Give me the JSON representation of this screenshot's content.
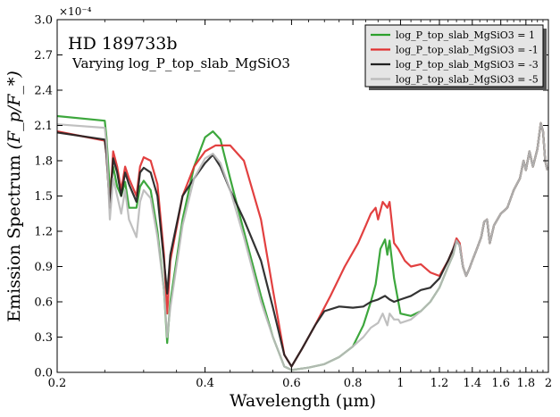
{
  "chart_data": {
    "type": "line",
    "title": "HD 189733b",
    "subtitle": "Varying log_P_top_slab_MgSiO3",
    "xlabel": "Wavelength (μm)",
    "ylabel_prefix": "Emission Spectrum ",
    "ylabel_math": "(F_p/F_*)",
    "y_multiplier": "×10⁻⁴",
    "xscale": "log",
    "xlim": [
      0.2,
      2.0
    ],
    "ylim": [
      0.0,
      3.0
    ],
    "x_ticks": [
      0.2,
      0.4,
      0.6,
      0.8,
      1.0,
      1.2,
      1.4,
      1.6,
      1.8,
      2.0
    ],
    "x_tick_labels": [
      "0.2",
      "0.4",
      "0.6",
      "0.8",
      "1",
      "1.2",
      "1.4",
      "1.6",
      "1.8",
      "2"
    ],
    "y_ticks": [
      0.0,
      0.3,
      0.6,
      0.9,
      1.2,
      1.5,
      1.8,
      2.1,
      2.4,
      2.7,
      3.0
    ],
    "y_tick_labels": [
      "0.0",
      "0.3",
      "0.6",
      "0.9",
      "1.2",
      "1.5",
      "1.8",
      "2.1",
      "2.4",
      "2.7",
      "3.0"
    ],
    "legend_position": "top-right",
    "grid": false,
    "series": [
      {
        "name": "log_P_top_slab_MgSiO3 = 1",
        "color": "#2ca02c",
        "points": [
          [
            0.2,
            2.18
          ],
          [
            0.25,
            2.14
          ],
          [
            0.252,
            2.0
          ],
          [
            0.256,
            1.55
          ],
          [
            0.26,
            1.75
          ],
          [
            0.265,
            1.58
          ],
          [
            0.27,
            1.5
          ],
          [
            0.275,
            1.62
          ],
          [
            0.28,
            1.4
          ],
          [
            0.29,
            1.4
          ],
          [
            0.295,
            1.58
          ],
          [
            0.3,
            1.63
          ],
          [
            0.31,
            1.55
          ],
          [
            0.32,
            1.2
          ],
          [
            0.33,
            0.7
          ],
          [
            0.335,
            0.25
          ],
          [
            0.34,
            0.6
          ],
          [
            0.36,
            1.3
          ],
          [
            0.38,
            1.75
          ],
          [
            0.4,
            2.0
          ],
          [
            0.415,
            2.05
          ],
          [
            0.43,
            1.98
          ],
          [
            0.45,
            1.65
          ],
          [
            0.48,
            1.2
          ],
          [
            0.52,
            0.65
          ],
          [
            0.55,
            0.3
          ],
          [
            0.58,
            0.05
          ],
          [
            0.6,
            0.02
          ],
          [
            0.65,
            0.04
          ],
          [
            0.7,
            0.07
          ],
          [
            0.75,
            0.13
          ],
          [
            0.8,
            0.22
          ],
          [
            0.84,
            0.4
          ],
          [
            0.87,
            0.6
          ],
          [
            0.89,
            0.75
          ],
          [
            0.91,
            1.05
          ],
          [
            0.93,
            1.13
          ],
          [
            0.94,
            1.0
          ],
          [
            0.95,
            1.12
          ],
          [
            0.97,
            0.8
          ],
          [
            0.99,
            0.6
          ],
          [
            1.0,
            0.5
          ],
          [
            1.05,
            0.48
          ],
          [
            1.1,
            0.52
          ],
          [
            1.15,
            0.6
          ],
          [
            1.2,
            0.72
          ],
          [
            1.25,
            0.9
          ],
          [
            1.28,
            1.0
          ],
          [
            1.3,
            1.12
          ],
          [
            1.32,
            1.08
          ],
          [
            1.34,
            0.9
          ],
          [
            1.36,
            0.82
          ],
          [
            1.38,
            0.88
          ],
          [
            1.4,
            0.95
          ],
          [
            1.43,
            1.05
          ],
          [
            1.46,
            1.15
          ],
          [
            1.48,
            1.28
          ],
          [
            1.5,
            1.3
          ],
          [
            1.52,
            1.1
          ],
          [
            1.55,
            1.25
          ],
          [
            1.6,
            1.35
          ],
          [
            1.65,
            1.4
          ],
          [
            1.7,
            1.55
          ],
          [
            1.75,
            1.65
          ],
          [
            1.78,
            1.8
          ],
          [
            1.8,
            1.72
          ],
          [
            1.83,
            1.88
          ],
          [
            1.86,
            1.75
          ],
          [
            1.9,
            1.9
          ],
          [
            1.93,
            2.12
          ],
          [
            1.95,
            2.05
          ],
          [
            1.97,
            1.8
          ],
          [
            1.99,
            1.72
          ]
        ]
      },
      {
        "name": "log_P_top_slab_MgSiO3 = -1",
        "color": "#e03030",
        "points": [
          [
            0.2,
            2.05
          ],
          [
            0.25,
            1.97
          ],
          [
            0.252,
            1.85
          ],
          [
            0.256,
            1.4
          ],
          [
            0.26,
            1.88
          ],
          [
            0.265,
            1.75
          ],
          [
            0.27,
            1.55
          ],
          [
            0.275,
            1.75
          ],
          [
            0.28,
            1.65
          ],
          [
            0.29,
            1.5
          ],
          [
            0.295,
            1.75
          ],
          [
            0.3,
            1.83
          ],
          [
            0.31,
            1.8
          ],
          [
            0.32,
            1.6
          ],
          [
            0.33,
            1.0
          ],
          [
            0.335,
            0.5
          ],
          [
            0.34,
            0.95
          ],
          [
            0.36,
            1.5
          ],
          [
            0.38,
            1.75
          ],
          [
            0.4,
            1.88
          ],
          [
            0.42,
            1.93
          ],
          [
            0.45,
            1.93
          ],
          [
            0.48,
            1.8
          ],
          [
            0.52,
            1.3
          ],
          [
            0.55,
            0.7
          ],
          [
            0.58,
            0.15
          ],
          [
            0.6,
            0.05
          ],
          [
            0.63,
            0.2
          ],
          [
            0.67,
            0.4
          ],
          [
            0.72,
            0.65
          ],
          [
            0.77,
            0.9
          ],
          [
            0.82,
            1.1
          ],
          [
            0.85,
            1.25
          ],
          [
            0.87,
            1.35
          ],
          [
            0.89,
            1.4
          ],
          [
            0.9,
            1.3
          ],
          [
            0.92,
            1.45
          ],
          [
            0.94,
            1.4
          ],
          [
            0.95,
            1.45
          ],
          [
            0.97,
            1.1
          ],
          [
            0.99,
            1.05
          ],
          [
            1.02,
            0.95
          ],
          [
            1.05,
            0.9
          ],
          [
            1.1,
            0.92
          ],
          [
            1.15,
            0.85
          ],
          [
            1.2,
            0.82
          ],
          [
            1.25,
            0.95
          ],
          [
            1.28,
            1.05
          ],
          [
            1.3,
            1.14
          ],
          [
            1.32,
            1.1
          ],
          [
            1.34,
            0.9
          ],
          [
            1.36,
            0.82
          ],
          [
            1.38,
            0.88
          ],
          [
            1.4,
            0.95
          ],
          [
            1.43,
            1.05
          ],
          [
            1.46,
            1.15
          ],
          [
            1.48,
            1.28
          ],
          [
            1.5,
            1.3
          ],
          [
            1.52,
            1.1
          ],
          [
            1.55,
            1.25
          ],
          [
            1.6,
            1.35
          ],
          [
            1.65,
            1.4
          ],
          [
            1.7,
            1.55
          ],
          [
            1.75,
            1.65
          ],
          [
            1.78,
            1.8
          ],
          [
            1.8,
            1.72
          ],
          [
            1.83,
            1.88
          ],
          [
            1.86,
            1.75
          ],
          [
            1.9,
            1.9
          ],
          [
            1.93,
            2.12
          ],
          [
            1.95,
            2.05
          ],
          [
            1.97,
            1.8
          ],
          [
            1.99,
            1.72
          ]
        ]
      },
      {
        "name": "log_P_top_slab_MgSiO3 = -3",
        "color": "#222222",
        "points": [
          [
            0.2,
            2.04
          ],
          [
            0.25,
            1.98
          ],
          [
            0.252,
            1.85
          ],
          [
            0.256,
            1.4
          ],
          [
            0.26,
            1.82
          ],
          [
            0.265,
            1.7
          ],
          [
            0.27,
            1.5
          ],
          [
            0.275,
            1.7
          ],
          [
            0.28,
            1.6
          ],
          [
            0.29,
            1.45
          ],
          [
            0.295,
            1.7
          ],
          [
            0.3,
            1.74
          ],
          [
            0.31,
            1.7
          ],
          [
            0.32,
            1.5
          ],
          [
            0.33,
            0.95
          ],
          [
            0.335,
            0.67
          ],
          [
            0.34,
            1.0
          ],
          [
            0.36,
            1.5
          ],
          [
            0.38,
            1.65
          ],
          [
            0.4,
            1.78
          ],
          [
            0.415,
            1.85
          ],
          [
            0.43,
            1.75
          ],
          [
            0.45,
            1.55
          ],
          [
            0.48,
            1.3
          ],
          [
            0.52,
            0.95
          ],
          [
            0.55,
            0.55
          ],
          [
            0.58,
            0.15
          ],
          [
            0.6,
            0.05
          ],
          [
            0.63,
            0.2
          ],
          [
            0.67,
            0.4
          ],
          [
            0.7,
            0.52
          ],
          [
            0.75,
            0.56
          ],
          [
            0.8,
            0.55
          ],
          [
            0.84,
            0.56
          ],
          [
            0.87,
            0.6
          ],
          [
            0.9,
            0.62
          ],
          [
            0.93,
            0.65
          ],
          [
            0.95,
            0.62
          ],
          [
            0.97,
            0.6
          ],
          [
            1.0,
            0.62
          ],
          [
            1.05,
            0.65
          ],
          [
            1.1,
            0.7
          ],
          [
            1.15,
            0.72
          ],
          [
            1.2,
            0.8
          ],
          [
            1.25,
            0.95
          ],
          [
            1.28,
            1.05
          ],
          [
            1.3,
            1.12
          ],
          [
            1.32,
            1.08
          ],
          [
            1.34,
            0.9
          ],
          [
            1.36,
            0.82
          ],
          [
            1.38,
            0.88
          ],
          [
            1.4,
            0.95
          ],
          [
            1.43,
            1.05
          ],
          [
            1.46,
            1.15
          ],
          [
            1.48,
            1.28
          ],
          [
            1.5,
            1.3
          ],
          [
            1.52,
            1.1
          ],
          [
            1.55,
            1.25
          ],
          [
            1.6,
            1.35
          ],
          [
            1.65,
            1.4
          ],
          [
            1.7,
            1.55
          ],
          [
            1.75,
            1.65
          ],
          [
            1.78,
            1.8
          ],
          [
            1.8,
            1.72
          ],
          [
            1.83,
            1.88
          ],
          [
            1.86,
            1.75
          ],
          [
            1.9,
            1.9
          ],
          [
            1.93,
            2.12
          ],
          [
            1.95,
            2.05
          ],
          [
            1.97,
            1.8
          ],
          [
            1.99,
            1.72
          ]
        ]
      },
      {
        "name": "log_P_top_slab_MgSiO3 = -5",
        "color": "#bbbbbb",
        "points": [
          [
            0.2,
            2.11
          ],
          [
            0.25,
            2.08
          ],
          [
            0.252,
            1.95
          ],
          [
            0.256,
            1.3
          ],
          [
            0.26,
            1.65
          ],
          [
            0.265,
            1.5
          ],
          [
            0.27,
            1.35
          ],
          [
            0.275,
            1.55
          ],
          [
            0.28,
            1.3
          ],
          [
            0.29,
            1.15
          ],
          [
            0.295,
            1.45
          ],
          [
            0.3,
            1.55
          ],
          [
            0.31,
            1.48
          ],
          [
            0.32,
            1.15
          ],
          [
            0.33,
            0.7
          ],
          [
            0.335,
            0.3
          ],
          [
            0.34,
            0.55
          ],
          [
            0.36,
            1.25
          ],
          [
            0.38,
            1.65
          ],
          [
            0.4,
            1.82
          ],
          [
            0.415,
            1.86
          ],
          [
            0.43,
            1.78
          ],
          [
            0.45,
            1.55
          ],
          [
            0.48,
            1.15
          ],
          [
            0.52,
            0.6
          ],
          [
            0.55,
            0.3
          ],
          [
            0.58,
            0.05
          ],
          [
            0.6,
            0.02
          ],
          [
            0.65,
            0.04
          ],
          [
            0.7,
            0.07
          ],
          [
            0.75,
            0.13
          ],
          [
            0.8,
            0.22
          ],
          [
            0.84,
            0.3
          ],
          [
            0.87,
            0.38
          ],
          [
            0.9,
            0.42
          ],
          [
            0.92,
            0.5
          ],
          [
            0.94,
            0.4
          ],
          [
            0.95,
            0.5
          ],
          [
            0.97,
            0.45
          ],
          [
            0.99,
            0.45
          ],
          [
            1.0,
            0.42
          ],
          [
            1.05,
            0.45
          ],
          [
            1.1,
            0.52
          ],
          [
            1.15,
            0.6
          ],
          [
            1.2,
            0.72
          ],
          [
            1.25,
            0.9
          ],
          [
            1.28,
            1.0
          ],
          [
            1.3,
            1.12
          ],
          [
            1.32,
            1.08
          ],
          [
            1.34,
            0.9
          ],
          [
            1.36,
            0.82
          ],
          [
            1.38,
            0.88
          ],
          [
            1.4,
            0.95
          ],
          [
            1.43,
            1.05
          ],
          [
            1.46,
            1.15
          ],
          [
            1.48,
            1.28
          ],
          [
            1.5,
            1.3
          ],
          [
            1.52,
            1.1
          ],
          [
            1.55,
            1.25
          ],
          [
            1.6,
            1.35
          ],
          [
            1.65,
            1.4
          ],
          [
            1.7,
            1.55
          ],
          [
            1.75,
            1.65
          ],
          [
            1.78,
            1.8
          ],
          [
            1.8,
            1.72
          ],
          [
            1.83,
            1.88
          ],
          [
            1.86,
            1.75
          ],
          [
            1.9,
            1.9
          ],
          [
            1.93,
            2.12
          ],
          [
            1.95,
            2.05
          ],
          [
            1.97,
            1.8
          ],
          [
            1.99,
            1.72
          ]
        ]
      }
    ]
  }
}
